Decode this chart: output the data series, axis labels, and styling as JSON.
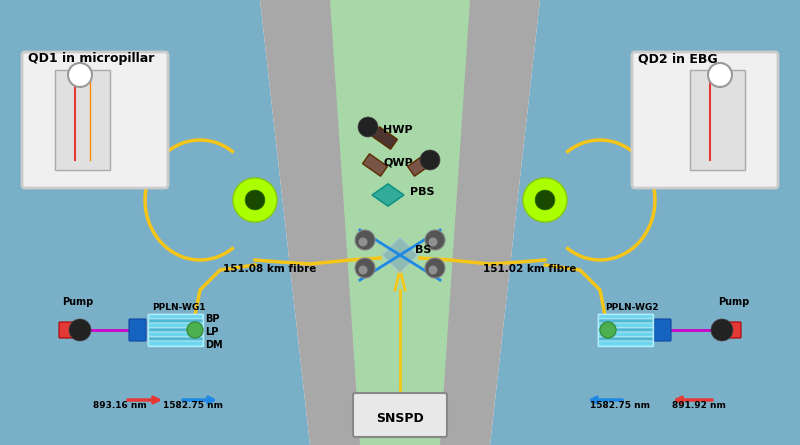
{
  "bg_left_color": "#7aafc8",
  "bg_center_gray_color": "#a8a8a8",
  "bg_center_green_color": "#a8d8a8",
  "bg_right_color": "#7aafc8",
  "text_color": "#000000",
  "title_left": "QD1 in micropillar",
  "title_right": "QD2 in EBG",
  "snspd_label": "SNSPD",
  "bs_label": "BS",
  "pbs_label": "PBS",
  "qwp_label": "QWP",
  "hwp_label": "HWP",
  "dm_label": "DM",
  "lp_label": "LP",
  "bp_label": "BP",
  "ppln_wg1_label": "PPLN-WG1",
  "ppln_wg2_label": "PPLN-WG2",
  "pump_label_left": "Pump",
  "pump_label_right": "Pump",
  "fiber_left_label": "151.08 km fibre",
  "fiber_right_label": "151.02 km fibre",
  "wavelength_left_red": "893.16 nm",
  "wavelength_left_blue": "1582.75 nm",
  "wavelength_right_blue": "1582.75 nm",
  "wavelength_right_red": "891.92 nm",
  "yellow_line_color": "#f5c518",
  "blue_line_color": "#1e88e5",
  "red_line_color": "#e53935",
  "magenta_line_color": "#cc00cc",
  "cyan_component_color": "#00bcd4",
  "green_dot_color": "#4caf50",
  "teal_crystal_color": "#26a69a",
  "gray_mirror_color": "#8a8a8a"
}
